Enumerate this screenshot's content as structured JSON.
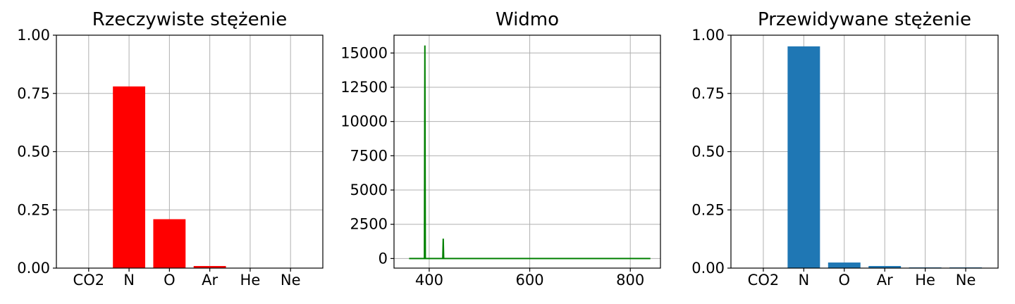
{
  "chart_data": [
    {
      "type": "bar",
      "title": "Rzeczywiste stężenie",
      "categories": [
        "CO2",
        "N",
        "O",
        "Ar",
        "He",
        "Ne"
      ],
      "values": [
        0.0,
        0.78,
        0.21,
        0.009,
        0.0,
        0.0
      ],
      "ylim": [
        0,
        1
      ],
      "yticks": [
        0.0,
        0.25,
        0.5,
        0.75,
        1.0
      ],
      "ytick_labels": [
        "0.00",
        "0.25",
        "0.50",
        "0.75",
        "1.00"
      ],
      "color": "#ff0000",
      "grid": true
    },
    {
      "type": "line",
      "title": "Widmo",
      "xlim": [
        330,
        860
      ],
      "ylim": [
        -700,
        16300
      ],
      "xticks": [
        400,
        600,
        800
      ],
      "xtick_labels": [
        "400",
        "600",
        "800"
      ],
      "yticks": [
        0,
        2500,
        5000,
        7500,
        10000,
        12500,
        15000
      ],
      "ytick_labels": [
        "0",
        "2500",
        "5000",
        "7500",
        "10000",
        "12500",
        "15000"
      ],
      "x": [
        360,
        390.5,
        391.4,
        392.3,
        427,
        427.9,
        428.8,
        840
      ],
      "y": [
        0,
        0,
        15550,
        0,
        0,
        1450,
        0,
        0
      ],
      "color": "#008000",
      "grid": true
    },
    {
      "type": "bar",
      "title": "Przewidywane stężenie",
      "categories": [
        "CO2",
        "N",
        "O",
        "Ar",
        "He",
        "Ne"
      ],
      "values": [
        0.0,
        0.952,
        0.024,
        0.009,
        0.003,
        0.003
      ],
      "ylim": [
        0,
        1
      ],
      "yticks": [
        0.0,
        0.25,
        0.5,
        0.75,
        1.0
      ],
      "ytick_labels": [
        "0.00",
        "0.25",
        "0.50",
        "0.75",
        "1.00"
      ],
      "color": "#1f77b4",
      "grid": true
    }
  ]
}
